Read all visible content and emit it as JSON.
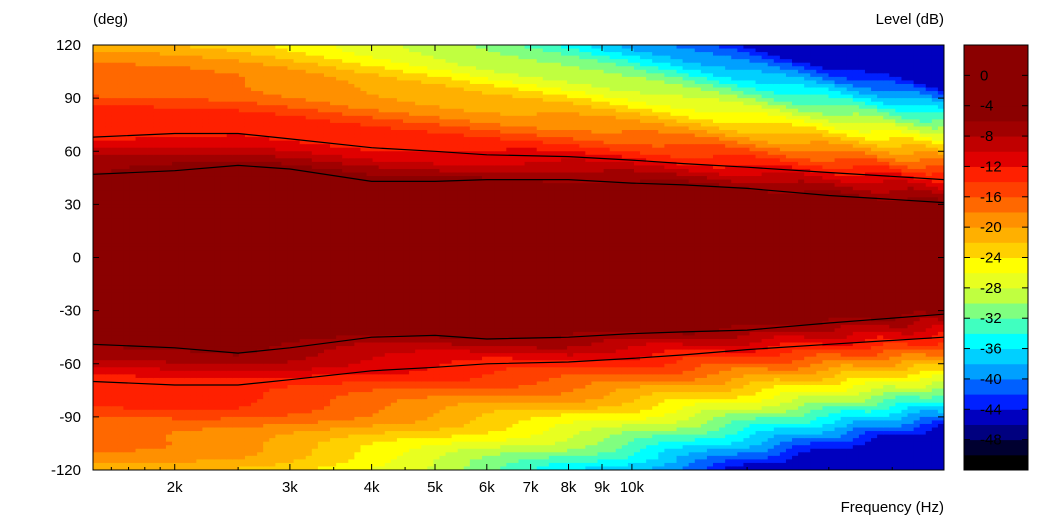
{
  "chart_data": {
    "type": "heatmap",
    "title": "",
    "xlabel": "Frequency  (Hz)",
    "ylabel": "(deg)",
    "colorbar_label": "Level  (dB)",
    "x_scale": "log",
    "xlim": [
      1500,
      30000
    ],
    "ylim": [
      -120,
      120
    ],
    "x_ticks": [
      {
        "value": 2000,
        "label": "2k"
      },
      {
        "value": 3000,
        "label": "3k"
      },
      {
        "value": 4000,
        "label": "4k"
      },
      {
        "value": 5000,
        "label": "5k"
      },
      {
        "value": 6000,
        "label": "6k"
      },
      {
        "value": 7000,
        "label": "7k"
      },
      {
        "value": 8000,
        "label": "8k"
      },
      {
        "value": 9000,
        "label": "9k"
      },
      {
        "value": 10000,
        "label": "10k"
      }
    ],
    "y_ticks": [
      {
        "value": 120,
        "label": "120"
      },
      {
        "value": 90,
        "label": "90"
      },
      {
        "value": 60,
        "label": "60"
      },
      {
        "value": 30,
        "label": "30"
      },
      {
        "value": 0,
        "label": "0"
      },
      {
        "value": -30,
        "label": "-30"
      },
      {
        "value": -60,
        "label": "-60"
      },
      {
        "value": -90,
        "label": "-90"
      },
      {
        "value": -120,
        "label": "-120"
      }
    ],
    "colorbar": {
      "range": [
        -52,
        4
      ],
      "step": 2,
      "ticks": [
        {
          "value": 0,
          "label": "0"
        },
        {
          "value": -4,
          "label": "-4"
        },
        {
          "value": -8,
          "label": "-8"
        },
        {
          "value": -12,
          "label": "-12"
        },
        {
          "value": -16,
          "label": "-16"
        },
        {
          "value": -20,
          "label": "-20"
        },
        {
          "value": -24,
          "label": "-24"
        },
        {
          "value": -28,
          "label": "-28"
        },
        {
          "value": -32,
          "label": "-32"
        },
        {
          "value": -36,
          "label": "-36"
        },
        {
          "value": -40,
          "label": "-40"
        },
        {
          "value": -44,
          "label": "-44"
        },
        {
          "value": -48,
          "label": "-48"
        }
      ],
      "colors": [
        "#000000",
        "#000030",
        "#00007f",
        "#0000bf",
        "#0020ff",
        "#0060ff",
        "#00a0ff",
        "#00d0ff",
        "#00ffff",
        "#40ffc0",
        "#80ff80",
        "#c0ff40",
        "#e8ff20",
        "#ffff00",
        "#ffd000",
        "#ffb000",
        "#ff9000",
        "#ff6800",
        "#ff4000",
        "#ff2000",
        "#e00000",
        "#c00000",
        "#a00000",
        "#8b0000",
        "#8b0000",
        "#8b0000",
        "#8b0000",
        "#8b0000"
      ]
    },
    "data_frequencies": [
      1500,
      2000,
      2500,
      3000,
      4000,
      5000,
      6000,
      7000,
      8000,
      10000,
      12000,
      15000,
      20000,
      30000
    ],
    "contour_lines": [
      {
        "name": "upper outer",
        "points": [
          [
            1500,
            68
          ],
          [
            2000,
            70
          ],
          [
            2500,
            70
          ],
          [
            3000,
            67
          ],
          [
            4000,
            62
          ],
          [
            5000,
            60
          ],
          [
            6000,
            58
          ],
          [
            8000,
            57
          ],
          [
            10000,
            55
          ],
          [
            12000,
            53
          ],
          [
            15000,
            51
          ],
          [
            20000,
            48
          ],
          [
            30000,
            44
          ]
        ]
      },
      {
        "name": "upper inner",
        "points": [
          [
            1500,
            47
          ],
          [
            2000,
            49
          ],
          [
            2500,
            52
          ],
          [
            3000,
            50
          ],
          [
            4000,
            43
          ],
          [
            5000,
            43
          ],
          [
            6000,
            44
          ],
          [
            8000,
            44
          ],
          [
            10000,
            42
          ],
          [
            12000,
            41
          ],
          [
            15000,
            39
          ],
          [
            20000,
            35
          ],
          [
            30000,
            31
          ]
        ]
      },
      {
        "name": "lower inner",
        "points": [
          [
            1500,
            -49
          ],
          [
            2000,
            -51
          ],
          [
            2500,
            -54
          ],
          [
            3000,
            -51
          ],
          [
            4000,
            -45
          ],
          [
            5000,
            -44
          ],
          [
            6000,
            -46
          ],
          [
            8000,
            -45
          ],
          [
            10000,
            -43
          ],
          [
            12000,
            -42
          ],
          [
            15000,
            -41
          ],
          [
            20000,
            -37
          ],
          [
            30000,
            -32
          ]
        ]
      },
      {
        "name": "lower outer",
        "points": [
          [
            1500,
            -70
          ],
          [
            2000,
            -72
          ],
          [
            2500,
            -72
          ],
          [
            3000,
            -69
          ],
          [
            4000,
            -64
          ],
          [
            5000,
            -62
          ],
          [
            6000,
            -60
          ],
          [
            8000,
            -59
          ],
          [
            10000,
            -57
          ],
          [
            12000,
            -55
          ],
          [
            15000,
            -52
          ],
          [
            20000,
            -49
          ],
          [
            30000,
            -45
          ]
        ]
      }
    ]
  }
}
